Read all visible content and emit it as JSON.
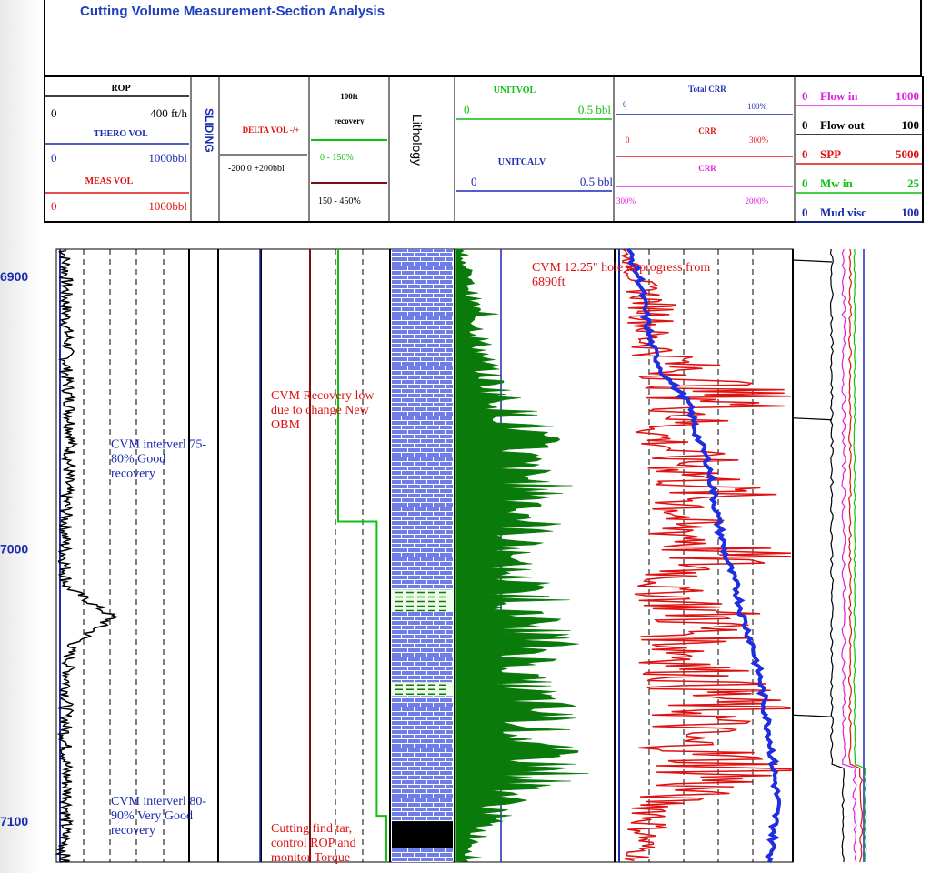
{
  "title": "Cutting Volume Measurement-Section Analysis",
  "header": {
    "rop": {
      "label": "ROP",
      "min": "0",
      "max": "400 ft/h"
    },
    "thero": {
      "label": "THERO VOL",
      "min": "0",
      "max": "1000bbl"
    },
    "meas": {
      "label": "MEAS VOL",
      "min": "0",
      "max": "1000bbl"
    },
    "sliding": "SLIDING",
    "delta": {
      "label": "DELTA VOL -/+",
      "range": "-200  0 +200bbl"
    },
    "recovery": {
      "title1": "100ft",
      "title2": "recovery",
      "green": "0  -  150%",
      "dark": "150 - 450%"
    },
    "lithology": "Lithology",
    "unitvol": {
      "label": "UNITVOL",
      "min": "0",
      "max": "0.5 bbl"
    },
    "unitcalv": {
      "label": "UNITCALV",
      "min": "0",
      "max": "0.5 bbl"
    },
    "total_crr": {
      "label": "Total CRR",
      "min": "0",
      "max": "100%"
    },
    "crr1": {
      "label": "CRR",
      "min": "0",
      "max": "300%"
    },
    "crr2": {
      "label": "CRR",
      "min": "300%",
      "max": "2000%"
    },
    "right_tracks": [
      {
        "min": "0",
        "label": "Flow in",
        "max": "1000",
        "color": "#e020e0"
      },
      {
        "min": "0",
        "label": "Flow out",
        "max": "100",
        "color": "#000000"
      },
      {
        "min": "0",
        "label": "SPP",
        "max": "5000",
        "color": "#e01010"
      },
      {
        "min": "0",
        "label": "Mw in",
        "max": "25",
        "color": "#10c010"
      },
      {
        "min": "0",
        "label": "Mud visc",
        "max": "100",
        "color": "#1a2ab0"
      }
    ]
  },
  "depths": [
    "6900",
    "7000",
    "7100"
  ],
  "annotations": {
    "a1": [
      "CVM  interverl 75-",
      "80%  Good",
      "recovery"
    ],
    "a2": [
      "CVM Recovery low",
      "due to change New",
      "OBM"
    ],
    "a3": [
      "CVM 12.25\" hole in progress from",
      "6890ft"
    ],
    "a4": [
      "CVM  interverl 80-",
      "90%  Very Good",
      "recovery"
    ],
    "a5": [
      "Cutting find  tar,",
      "control ROP and",
      "monitor Torque"
    ]
  },
  "colors": {
    "blue": "#1a2ab0",
    "red": "#e01010",
    "green": "#10c010",
    "dark_green": "#0a7a0a",
    "magenta": "#e020e0",
    "limestone": "#6e7de8"
  },
  "chart_data": {
    "type": "line",
    "title": "Cutting Volume Measurement-Section Analysis",
    "depth_axis": {
      "label": "",
      "ticks": [
        6900,
        7000,
        7100
      ],
      "range": [
        6890,
        7115
      ]
    },
    "series": [
      {
        "name": "ROP",
        "unit": "ft/h",
        "range": [
          0,
          400
        ],
        "values": [
          25,
          30,
          28,
          35,
          30,
          40,
          45,
          38,
          30,
          28,
          25,
          30,
          170,
          40,
          35,
          30,
          28,
          30,
          35,
          25,
          22
        ]
      },
      {
        "name": "UNITVOL",
        "unit": "bbl",
        "range": [
          0,
          0.5
        ],
        "values": [
          0.02,
          0.05,
          0.08,
          0.1,
          0.12,
          0.2,
          0.3,
          0.25,
          0.35,
          0.3,
          0.2,
          0.25,
          0.3,
          0.35,
          0.25,
          0.35,
          0.3,
          0.4,
          0.2,
          0.1,
          0.05
        ]
      },
      {
        "name": "Total CRR",
        "unit": "%",
        "range": [
          0,
          100
        ],
        "values": [
          5,
          12,
          15,
          18,
          25,
          40,
          45,
          52,
          55,
          58,
          62,
          68,
          72,
          78,
          82,
          85,
          88,
          90,
          92,
          90,
          88
        ]
      },
      {
        "name": "CRR",
        "unit": "%",
        "range": [
          0,
          300
        ],
        "values": [
          10,
          40,
          80,
          60,
          150,
          250,
          80,
          160,
          200,
          120,
          240,
          90,
          200,
          150,
          180,
          220,
          130,
          270,
          100,
          60,
          40
        ]
      }
    ],
    "recovery_steps": [
      {
        "from": 6890,
        "to": 6990,
        "recovery_percent": 0
      },
      {
        "from": 6990,
        "to": 7098,
        "recovery_percent": 120
      },
      {
        "from": 7098,
        "to": 7115,
        "recovery_percent": 150
      }
    ],
    "lithology": [
      {
        "from": 6890,
        "to": 7015,
        "rock": "limestone"
      },
      {
        "from": 7015,
        "to": 7023,
        "rock": "shale"
      },
      {
        "from": 7023,
        "to": 7049,
        "rock": "limestone"
      },
      {
        "from": 7049,
        "to": 7054,
        "rock": "shale"
      },
      {
        "from": 7054,
        "to": 7100,
        "rock": "limestone"
      },
      {
        "from": 7100,
        "to": 7110,
        "rock": "coal"
      },
      {
        "from": 7110,
        "to": 7115,
        "rock": "limestone"
      }
    ]
  }
}
